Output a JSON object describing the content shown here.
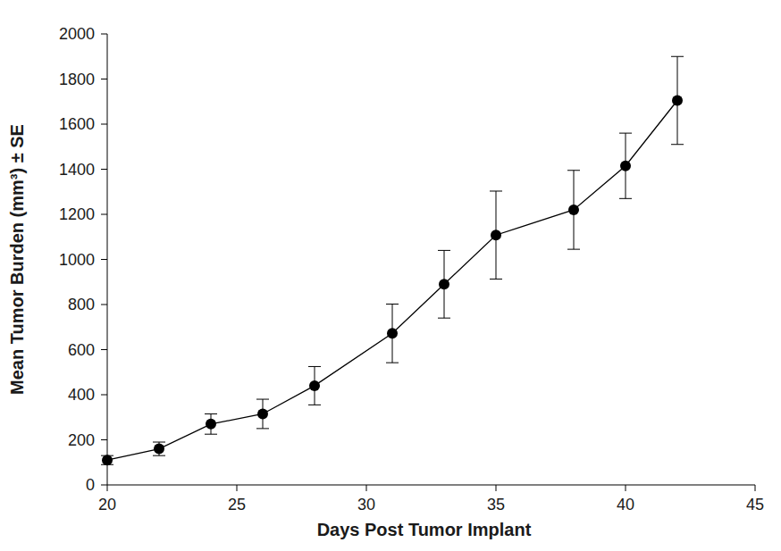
{
  "chart_data": {
    "type": "line",
    "x_label": "Days Post Tumor Implant",
    "y_label": "Mean Tumor Burden (mm³) ± SE",
    "x": [
      20,
      22,
      24,
      26,
      28,
      31,
      33,
      35,
      38,
      40,
      42
    ],
    "series": [
      {
        "color": "#000000",
        "marker": "circle",
        "line_style": "solid",
        "values": [
          110,
          160,
          270,
          315,
          440,
          672,
          890,
          1108,
          1220,
          1415,
          1705
        ],
        "errors": [
          20,
          30,
          45,
          65,
          85,
          130,
          150,
          195,
          175,
          145,
          195
        ]
      }
    ],
    "xlim": [
      20,
      45
    ],
    "xticks": [
      20,
      25,
      30,
      35,
      40,
      45
    ],
    "ylim": [
      0,
      2000
    ],
    "yticks": [
      0,
      200,
      400,
      600,
      800,
      1000,
      1200,
      1400,
      1600,
      1800,
      2000
    ],
    "grid": false
  }
}
